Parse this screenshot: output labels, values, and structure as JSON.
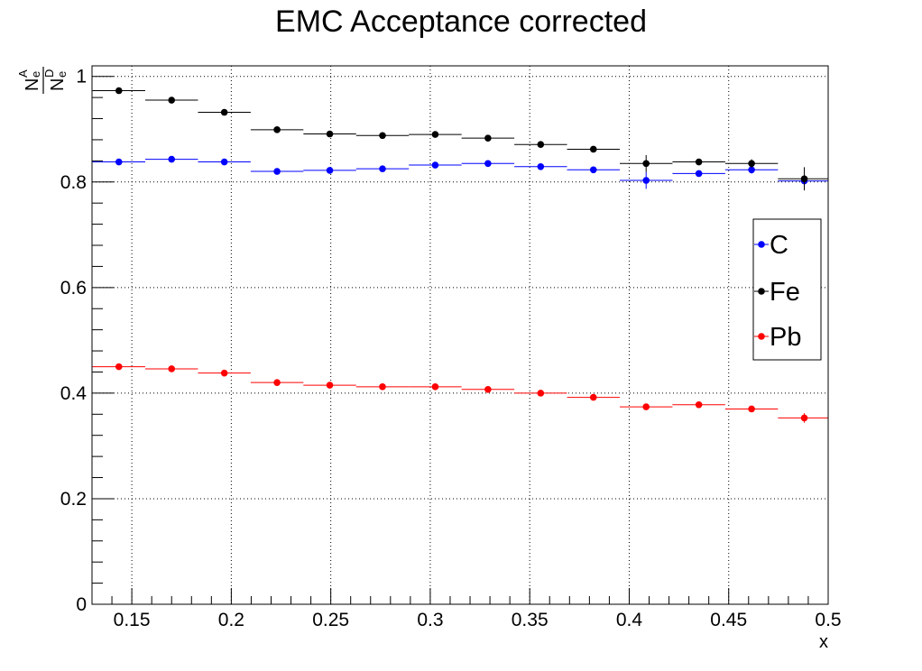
{
  "chart_data": {
    "type": "scatter",
    "title": "EMC Acceptance corrected",
    "xlabel": "x",
    "ylabel": {
      "numerator": "N",
      "numerator_sub": "e",
      "numerator_sup": "A",
      "denominator": "N",
      "denominator_sub": "e",
      "denominator_sup": "D"
    },
    "xlim": [
      0.13,
      0.5
    ],
    "ylim": [
      0,
      1.02
    ],
    "x_ticks": [
      "0.15",
      "0.2",
      "0.25",
      "0.3",
      "0.35",
      "0.4",
      "0.45",
      "0.5"
    ],
    "x_tick_values": [
      0.15,
      0.2,
      0.25,
      0.3,
      0.35,
      0.4,
      0.45,
      0.5
    ],
    "y_ticks": [
      "0",
      "0.2",
      "0.4",
      "0.6",
      "0.8",
      "1"
    ],
    "y_tick_values": [
      0,
      0.2,
      0.4,
      0.6,
      0.8,
      1.0
    ],
    "grid": true,
    "legend_position": "right",
    "bin_width": 0.0265,
    "x": [
      0.1435,
      0.17,
      0.1965,
      0.223,
      0.2495,
      0.276,
      0.3025,
      0.329,
      0.3555,
      0.382,
      0.4085,
      0.435,
      0.4615,
      0.488
    ],
    "series": [
      {
        "name": "C",
        "color": "#0000ff",
        "values": [
          0.838,
          0.843,
          0.838,
          0.82,
          0.822,
          0.825,
          0.832,
          0.835,
          0.829,
          0.823,
          0.803,
          0.816,
          0.823,
          0.802
        ],
        "errors": [
          0.003,
          0.003,
          0.003,
          0.003,
          0.003,
          0.003,
          0.004,
          0.004,
          0.004,
          0.005,
          0.016,
          0.006,
          0.007,
          0.012
        ]
      },
      {
        "name": "Fe",
        "color": "#000000",
        "values": [
          0.973,
          0.955,
          0.932,
          0.899,
          0.891,
          0.888,
          0.89,
          0.883,
          0.871,
          0.862,
          0.835,
          0.838,
          0.835,
          0.806
        ],
        "errors": [
          0.003,
          0.003,
          0.003,
          0.003,
          0.003,
          0.003,
          0.004,
          0.004,
          0.004,
          0.005,
          0.016,
          0.006,
          0.008,
          0.022
        ]
      },
      {
        "name": "Pb",
        "color": "#ff0000",
        "values": [
          0.45,
          0.446,
          0.438,
          0.42,
          0.415,
          0.412,
          0.412,
          0.407,
          0.4,
          0.392,
          0.374,
          0.378,
          0.37,
          0.353
        ],
        "errors": [
          0.003,
          0.003,
          0.003,
          0.003,
          0.003,
          0.003,
          0.004,
          0.004,
          0.004,
          0.005,
          0.005,
          0.006,
          0.006,
          0.009
        ]
      }
    ]
  }
}
